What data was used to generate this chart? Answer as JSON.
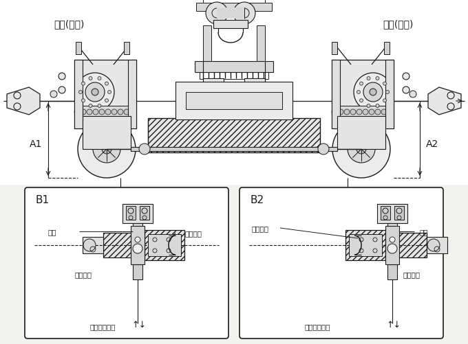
{
  "bg_color": "#f2f2ee",
  "line_color": "#1a1a1a",
  "title_left": "主动(送料)",
  "title_right": "被动(拉料)",
  "label_A1": "A1",
  "label_A2": "A2",
  "label_B1": "B1",
  "label_B2": "B2",
  "B1_yao": "摇臂",
  "B1_shi": "十字接头",
  "B1_gu": "固定螺帽",
  "B1_pian": "偏心连接心轴",
  "B2_shi": "十字接头",
  "B2_yao": "摇臂",
  "B2_gu": "固定螺帽",
  "B2_pian": "偏心连接心轴",
  "fig_width": 6.8,
  "fig_height": 5.02,
  "dpi": 100
}
